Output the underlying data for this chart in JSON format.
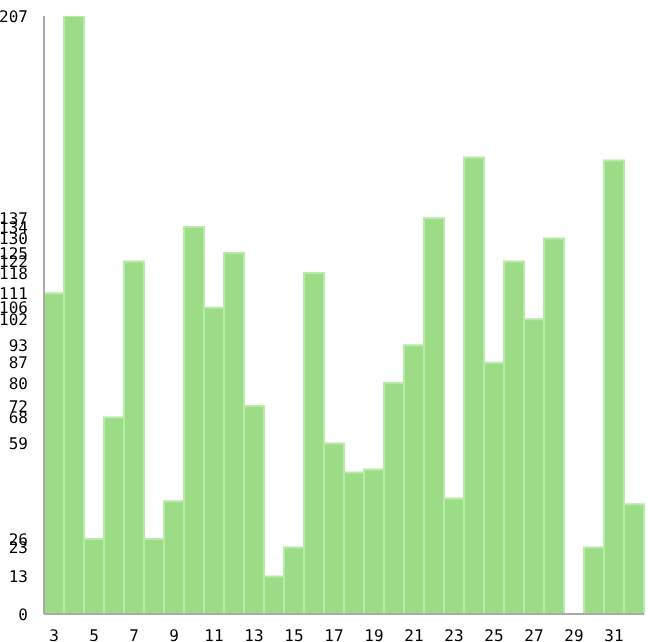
{
  "chart_data": {
    "type": "bar",
    "categories": [
      "3",
      null,
      "5",
      null,
      "7",
      null,
      "9",
      null,
      "11",
      null,
      "13",
      null,
      "15",
      null,
      "17",
      null,
      "19",
      null,
      "21",
      null,
      "23",
      null,
      "25",
      null,
      "27",
      null,
      "29",
      null,
      "31",
      null
    ],
    "values": [
      111,
      207,
      26,
      68,
      122,
      26,
      39,
      134,
      106,
      125,
      72,
      13,
      23,
      118,
      59,
      49,
      50,
      80,
      93,
      137,
      40,
      158,
      87,
      122,
      102,
      130,
      0,
      23,
      157,
      38
    ],
    "color": "#9cdc86",
    "ylim": [
      0,
      207
    ],
    "yticks": [
      0,
      13,
      23,
      26,
      59,
      68,
      72,
      80,
      87,
      93,
      102,
      106,
      111,
      118,
      122,
      125,
      130,
      134,
      137,
      207
    ]
  }
}
